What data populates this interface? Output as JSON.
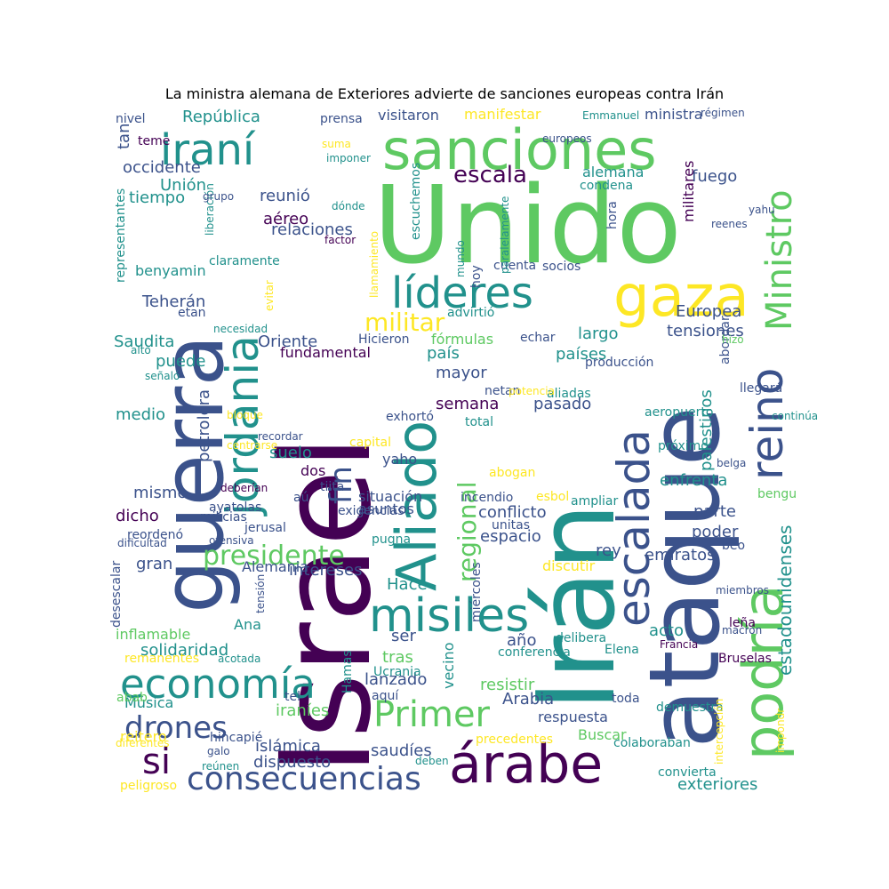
{
  "title": "La ministra alemana de Exteriores advierte de sanciones europeas contra Irán",
  "palette": [
    "#440154",
    "#3b528b",
    "#21918c",
    "#5ec962",
    "#fde725"
  ],
  "words": [
    {
      "text": "Israel"
    },
    {
      "text": "Irán"
    },
    {
      "text": "Unido"
    },
    {
      "text": "ataque"
    },
    {
      "text": "guerra"
    },
    {
      "text": "sanciones"
    },
    {
      "text": "podría"
    },
    {
      "text": "árabe"
    },
    {
      "text": "Aliado"
    },
    {
      "text": "jordania"
    },
    {
      "text": "misiles"
    },
    {
      "text": "líderes"
    },
    {
      "text": "gaza"
    },
    {
      "text": "reino"
    },
    {
      "text": "escalada"
    },
    {
      "text": "economía"
    },
    {
      "text": "Primer"
    },
    {
      "text": "iraní"
    },
    {
      "text": "Ministro"
    },
    {
      "text": "consecuencias"
    },
    {
      "text": "presidente"
    },
    {
      "text": "si"
    },
    {
      "text": "drones"
    },
    {
      "text": "militar"
    },
    {
      "text": "regional"
    },
    {
      "text": "fin"
    },
    {
      "text": "escala"
    },
    {
      "text": "estadounidenses"
    },
    {
      "text": "República"
    },
    {
      "text": "occidente"
    },
    {
      "text": "Unión"
    },
    {
      "text": "tiempo"
    },
    {
      "text": "Teherán"
    },
    {
      "text": "benyamin"
    },
    {
      "text": "Saudita"
    },
    {
      "text": "puede"
    },
    {
      "text": "medio"
    },
    {
      "text": "petrolera"
    },
    {
      "text": "mismo"
    },
    {
      "text": "dicho"
    },
    {
      "text": "gran"
    },
    {
      "text": "solidaridad"
    },
    {
      "text": "Música"
    },
    {
      "text": "reitero"
    },
    {
      "text": "peligroso"
    },
    {
      "text": "nivel"
    },
    {
      "text": "tan"
    },
    {
      "text": "teme"
    },
    {
      "text": "reunió"
    },
    {
      "text": "aéreo"
    },
    {
      "text": "relaciones"
    },
    {
      "text": "Oriente"
    },
    {
      "text": "fundamental"
    },
    {
      "text": "suelo"
    },
    {
      "text": "dos"
    },
    {
      "text": "situación"
    },
    {
      "text": "asuntos"
    },
    {
      "text": "intereses"
    },
    {
      "text": "Hace"
    },
    {
      "text": "ser"
    },
    {
      "text": "tras"
    },
    {
      "text": "lanzado"
    },
    {
      "text": "islámica"
    },
    {
      "text": "dispuesto"
    },
    {
      "text": "saudíes"
    },
    {
      "text": "iraníes"
    },
    {
      "text": "país"
    },
    {
      "text": "mayor"
    },
    {
      "text": "semana"
    },
    {
      "text": "pasado"
    },
    {
      "text": "conflicto"
    },
    {
      "text": "espacio"
    },
    {
      "text": "rey"
    },
    {
      "text": "resistir"
    },
    {
      "text": "Arabia"
    },
    {
      "text": "respuesta"
    },
    {
      "text": "precedentes"
    },
    {
      "text": "Buscar"
    },
    {
      "text": "largo"
    },
    {
      "text": "tensiones"
    },
    {
      "text": "Europea"
    },
    {
      "text": "fuego"
    },
    {
      "text": "militares"
    },
    {
      "text": "visitaron"
    },
    {
      "text": "manifestar"
    },
    {
      "text": "ministra"
    },
    {
      "text": "Emmanuel"
    },
    {
      "text": "régimen"
    },
    {
      "text": "prensa"
    },
    {
      "text": "alemana"
    },
    {
      "text": "condena"
    },
    {
      "text": "escuchemos"
    },
    {
      "text": "hoy"
    },
    {
      "text": "cuenta"
    },
    {
      "text": "socios"
    },
    {
      "text": "advirtió"
    },
    {
      "text": "fórmulas"
    },
    {
      "text": "países"
    },
    {
      "text": "palestinos"
    },
    {
      "text": "aeropuerto"
    },
    {
      "text": "enfrenta"
    },
    {
      "text": "parte"
    },
    {
      "text": "poder"
    },
    {
      "text": "emiratos"
    },
    {
      "text": "discutir"
    },
    {
      "text": "acto"
    },
    {
      "text": "Elena"
    },
    {
      "text": "año"
    },
    {
      "text": "conferencia"
    },
    {
      "text": "miércoles"
    },
    {
      "text": "vecino"
    },
    {
      "text": "incendio"
    },
    {
      "text": "exteriores"
    },
    {
      "text": "convierta"
    },
    {
      "text": "demuestra"
    },
    {
      "text": "toda"
    },
    {
      "text": "Bruselas"
    },
    {
      "text": "Francia"
    },
    {
      "text": "leña"
    },
    {
      "text": "miembros"
    },
    {
      "text": "beo"
    },
    {
      "text": "bengu"
    },
    {
      "text": "belga"
    },
    {
      "text": "próximo"
    },
    {
      "text": "continúa"
    },
    {
      "text": "llegará"
    },
    {
      "text": "abordar"
    },
    {
      "text": "hizo"
    },
    {
      "text": "producción"
    },
    {
      "text": "aliadas"
    },
    {
      "text": "netan"
    },
    {
      "text": "potencia"
    },
    {
      "text": "echar"
    },
    {
      "text": "Hicieron"
    },
    {
      "text": "exhortó"
    },
    {
      "text": "total"
    },
    {
      "text": "capital"
    },
    {
      "text": "abogan"
    },
    {
      "text": "ampliar"
    },
    {
      "text": "esbol"
    },
    {
      "text": "unitas"
    },
    {
      "text": "pugna"
    },
    {
      "text": "yaho"
    },
    {
      "text": "tiita"
    },
    {
      "text": "aú"
    },
    {
      "text": "exigencias"
    },
    {
      "text": "Alemania"
    },
    {
      "text": "ayatolas"
    },
    {
      "text": "milicias"
    },
    {
      "text": "jerusal"
    },
    {
      "text": "ofensiva"
    },
    {
      "text": "dificultad"
    },
    {
      "text": "reordenó"
    },
    {
      "text": "desescalar"
    },
    {
      "text": "tensión"
    },
    {
      "text": "Ana"
    },
    {
      "text": "inflamable"
    },
    {
      "text": "remanentes"
    },
    {
      "text": "acotada"
    },
    {
      "text": "Hamas"
    },
    {
      "text": "Ucrania"
    },
    {
      "text": "aquí"
    },
    {
      "text": "tel"
    },
    {
      "text": "delibera"
    },
    {
      "text": "macron"
    },
    {
      "text": "abab"
    },
    {
      "text": "hincapié"
    },
    {
      "text": "galo"
    },
    {
      "text": "reúnen"
    },
    {
      "text": "diferentes"
    },
    {
      "text": "deben"
    },
    {
      "text": "colaboraban"
    },
    {
      "text": "intercepción"
    },
    {
      "text": "impondr"
    },
    {
      "text": "recordar"
    },
    {
      "text": "centrarse"
    },
    {
      "text": "deberían"
    },
    {
      "text": "bloque"
    },
    {
      "text": "señaló"
    },
    {
      "text": "alto"
    },
    {
      "text": "necesidad"
    },
    {
      "text": "etan"
    },
    {
      "text": "representantes"
    },
    {
      "text": "claramente"
    },
    {
      "text": "evitar"
    },
    {
      "text": "llamamiento"
    },
    {
      "text": "factor"
    },
    {
      "text": "dónde"
    },
    {
      "text": "liberación"
    },
    {
      "text": "grupo"
    },
    {
      "text": "suma"
    },
    {
      "text": "imponer"
    },
    {
      "text": "europeos"
    },
    {
      "text": "mundo"
    },
    {
      "text": "paralelamente"
    },
    {
      "text": "hora"
    },
    {
      "text": "yahu"
    },
    {
      "text": "reenes"
    },
    {
      "text": "íes"
    }
  ]
}
